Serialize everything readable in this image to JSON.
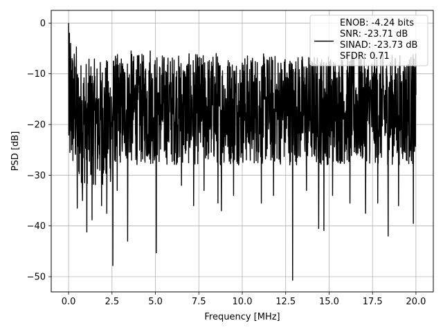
{
  "chart_data": {
    "type": "line",
    "title": "",
    "xlabel": "Frequency [MHz]",
    "ylabel": "PSD [dB]",
    "xlim": [
      -1.0,
      21.0
    ],
    "ylim": [
      -53.0,
      2.5
    ],
    "xticks": [
      0.0,
      2.5,
      5.0,
      7.5,
      10.0,
      12.5,
      15.0,
      17.5,
      20.0
    ],
    "xtick_labels": [
      "0.0",
      "2.5",
      "5.0",
      "7.5",
      "10.0",
      "12.5",
      "15.0",
      "17.5",
      "20.0"
    ],
    "yticks": [
      0,
      -10,
      -20,
      -30,
      -40,
      -50
    ],
    "ytick_labels": [
      "0",
      "−10",
      "−20",
      "−30",
      "−40",
      "−50"
    ],
    "grid": true,
    "legend_placement": "top-right",
    "series": [
      {
        "name": "ENOB: -4.24 bits\nSNR: -23.71 dB\nSINAD: -23.73 dB\nSFDR: 0.71",
        "color": "#000000",
        "envelope_bands": [
          {
            "x": [
              0.0,
              0.5
            ],
            "upper": -4,
            "lower": -30
          },
          {
            "x": [
              0.5,
              2.5
            ],
            "upper": -7,
            "lower": -32
          },
          {
            "x": [
              2.5,
              20.0
            ],
            "upper": -6,
            "lower": -28
          }
        ],
        "peaks": [
          {
            "x": 0.0,
            "y": 0.0
          },
          {
            "x": 0.05,
            "y": -2.0
          },
          {
            "x": 0.12,
            "y": -4.0
          },
          {
            "x": 0.2,
            "y": -7.0
          },
          {
            "x": 0.35,
            "y": -10.0
          },
          {
            "x": 3.6,
            "y": -5.5
          },
          {
            "x": 4.7,
            "y": -5.5
          },
          {
            "x": 5.4,
            "y": -6.5
          },
          {
            "x": 8.5,
            "y": -6.0
          },
          {
            "x": 14.4,
            "y": -6.0
          },
          {
            "x": 17.1,
            "y": -7.5
          },
          {
            "x": 18.4,
            "y": -7.5
          }
        ],
        "dips": [
          {
            "x": 0.5,
            "y": -36.5
          },
          {
            "x": 0.8,
            "y": -35.0
          },
          {
            "x": 1.05,
            "y": -41.2
          },
          {
            "x": 1.35,
            "y": -38.8
          },
          {
            "x": 1.9,
            "y": -36.0
          },
          {
            "x": 2.2,
            "y": -37.5
          },
          {
            "x": 2.55,
            "y": -47.8
          },
          {
            "x": 2.8,
            "y": -33.0
          },
          {
            "x": 3.4,
            "y": -43.0
          },
          {
            "x": 5.05,
            "y": -45.3
          },
          {
            "x": 6.5,
            "y": -32.0
          },
          {
            "x": 7.2,
            "y": -36.0
          },
          {
            "x": 7.8,
            "y": -33.0
          },
          {
            "x": 8.6,
            "y": -35.5
          },
          {
            "x": 8.8,
            "y": -37.0
          },
          {
            "x": 9.5,
            "y": -34.0
          },
          {
            "x": 11.1,
            "y": -35.5
          },
          {
            "x": 11.8,
            "y": -34.0
          },
          {
            "x": 12.9,
            "y": -50.7
          },
          {
            "x": 13.7,
            "y": -33.0
          },
          {
            "x": 14.4,
            "y": -40.5
          },
          {
            "x": 14.7,
            "y": -40.9
          },
          {
            "x": 15.2,
            "y": -34.0
          },
          {
            "x": 16.2,
            "y": -35.5
          },
          {
            "x": 17.1,
            "y": -37.5
          },
          {
            "x": 17.8,
            "y": -35.5
          },
          {
            "x": 18.4,
            "y": -42.0
          },
          {
            "x": 19.0,
            "y": -36.0
          },
          {
            "x": 19.85,
            "y": -39.5
          }
        ]
      }
    ]
  }
}
